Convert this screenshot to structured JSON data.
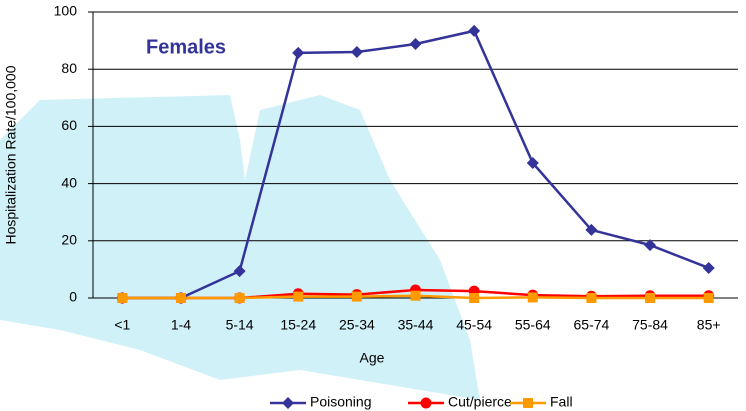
{
  "chart_data": {
    "type": "line",
    "title": "Females",
    "x_label": "Age",
    "y_label": "Hospitalization Rate/100,000",
    "categories": [
      "<1",
      "1-4",
      "5-14",
      "15-24",
      "25-34",
      "35-44",
      "45-54",
      "55-64",
      "65-74",
      "75-84",
      "85+"
    ],
    "series": [
      {
        "name": "Poisoning",
        "color": "#333399",
        "marker": "diamond",
        "values": [
          0,
          0,
          9.4,
          85.7,
          86,
          88.8,
          93.4,
          47.2,
          23.8,
          18.5,
          10.5
        ]
      },
      {
        "name": "Cut/pierce",
        "color": "#ff0000",
        "marker": "circle",
        "values": [
          0,
          0,
          0,
          1.5,
          1.2,
          2.8,
          2.4,
          1,
          0.6,
          0.8,
          0.8
        ]
      },
      {
        "name": "Fall",
        "color": "#ff9900",
        "marker": "square",
        "values": [
          0,
          0,
          0,
          0.5,
          0.5,
          0.8,
          0,
          0.2,
          0,
          0,
          0
        ]
      }
    ],
    "ylim": [
      0,
      100
    ],
    "yticks": [
      0,
      20,
      40,
      60,
      80,
      100
    ],
    "grid": true
  }
}
